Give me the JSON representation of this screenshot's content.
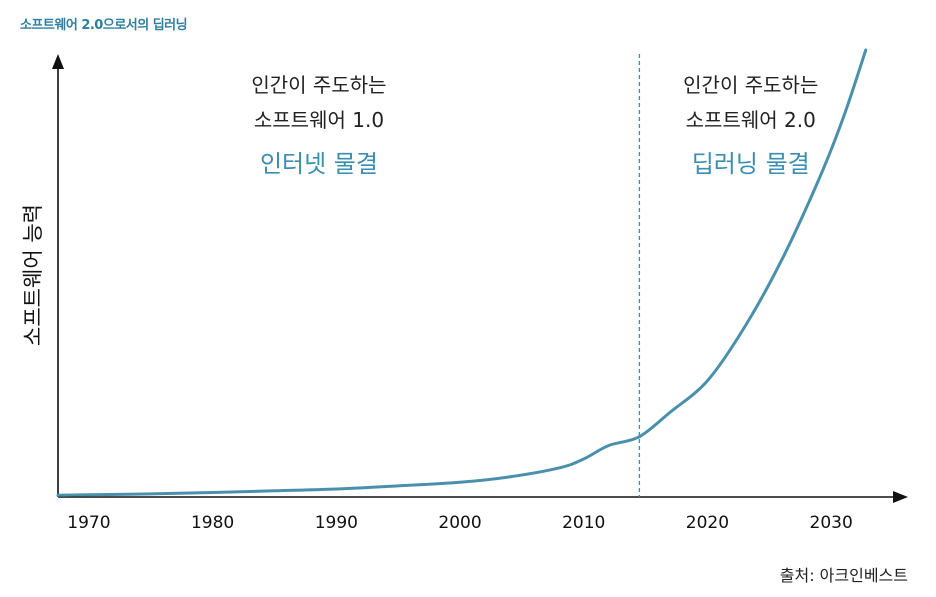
{
  "title": "소프트웨어 2.0으로서의 딥러닝",
  "source": "출처: 아크인베스트",
  "colors": {
    "accent": "#3a8fb0",
    "axis": "#111111",
    "curve": "#4a90ad",
    "title": "#2e7ea0"
  },
  "chart_data": {
    "type": "line",
    "title": "소프트웨어 2.0으로서의 딥러닝",
    "xlabel": "",
    "ylabel": "소프트웨어 능력",
    "x_ticks": [
      1970,
      1980,
      1990,
      2000,
      2010,
      2020,
      2030
    ],
    "xlim": [
      1967.5,
      2035
    ],
    "ylim": [
      0,
      100
    ],
    "y_ticks_shown": false,
    "series": [
      {
        "x": [
          1967.5,
          1970,
          1975,
          1980,
          1985,
          1990,
          1995,
          2000,
          2004,
          2008,
          2010,
          2012,
          2014.5,
          2017,
          2020,
          2023,
          2026,
          2029,
          2031,
          2032.8
        ],
        "y": [
          0.4,
          0.5,
          0.7,
          1.0,
          1.4,
          1.8,
          2.5,
          3.3,
          4.5,
          6.5,
          8.5,
          11.5,
          13.5,
          19,
          26,
          38,
          53,
          71,
          85,
          100
        ]
      }
    ],
    "divider_x": 2014.5,
    "annotations": [
      {
        "line1": "인간이 주도하는",
        "line2": "소프트웨어 1.0",
        "line3": "인터넷 물결"
      },
      {
        "line1": "인간이 주도하는",
        "line2": "소프트웨어 2.0",
        "line3": "딥러닝 물결"
      }
    ],
    "grid": false
  }
}
